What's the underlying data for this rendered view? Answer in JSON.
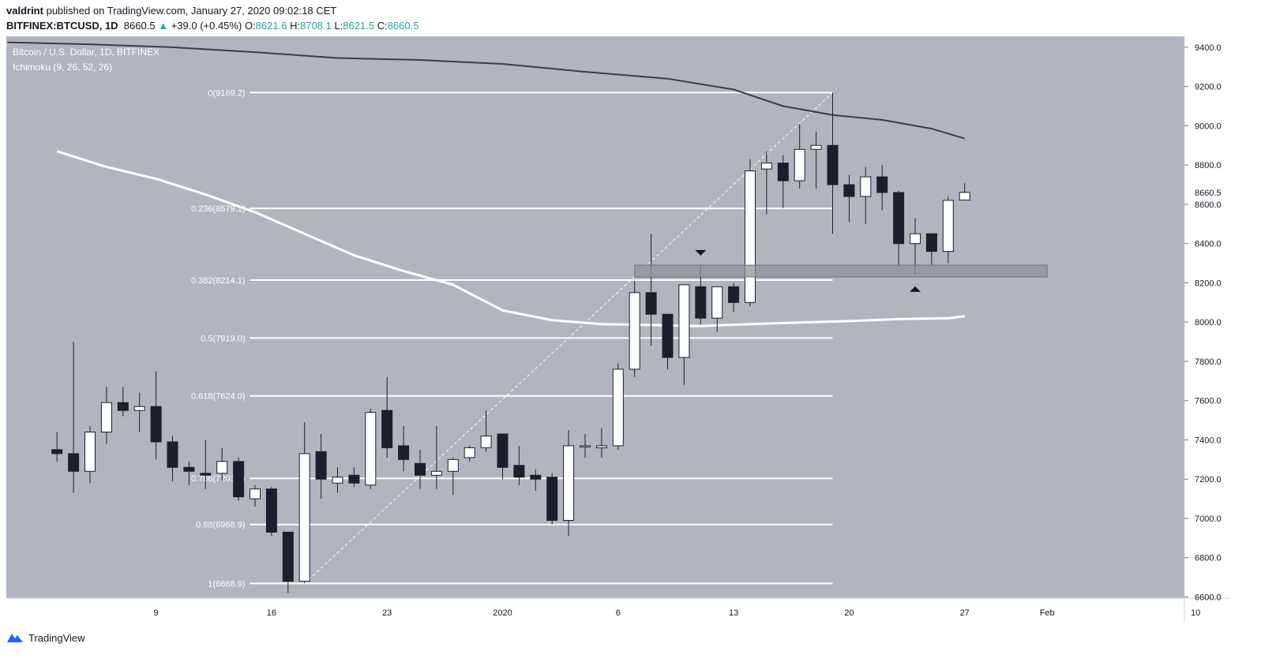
{
  "header": {
    "author": "valdrint",
    "published_text": "published on TradingView.com, January 27, 2020 09:02:18 CET",
    "symbol": "BITFINEX:BTCUSD, 1D",
    "last": "8660.5",
    "change_arrow": "▲",
    "change": "+39.0 (+0.45%)",
    "o_label": "O:",
    "o": "8621.6",
    "h_label": "H:",
    "h": "8708.1",
    "l_label": "L:",
    "l": "8621.5",
    "c_label": "C:",
    "c": "8660.5"
  },
  "legend": {
    "title": "Bitcoin / U.S. Dollar, 1D, BITFINEX",
    "indicator": "Ichimoku (9, 26, 52, 26)"
  },
  "footer": {
    "brand": "TradingView",
    "logo_icon": "tradingview-logo-icon"
  },
  "colors": {
    "pane_bg": "#b2b5be",
    "axis_bg": "#ffffff",
    "up_candle": "#ffffff",
    "down_candle": "#1c1f2b",
    "fib_line": "#ffffff",
    "dark_line": "#3a3d47",
    "light_line": "#ffffff",
    "zone": "#8f929b",
    "price_tag": "#ffffff"
  },
  "chart_data": {
    "type": "candlestick",
    "title": "Bitcoin / U.S. Dollar, 1D, BITFINEX",
    "ylim": [
      6600,
      9500
    ],
    "y_ticks": [
      6600,
      6800,
      7000,
      7200,
      7400,
      7600,
      7800,
      8000,
      8200,
      8400,
      8600,
      8800,
      9000,
      9200,
      9400
    ],
    "y_tick_labels": [
      "6600.0",
      "6800.0",
      "7000.0",
      "7200.0",
      "7400.0",
      "7600.0",
      "7800.0",
      "8000.0",
      "8200.0",
      "8400.0",
      "8600.0",
      "8800.0",
      "9000.0",
      "9200.0",
      "9400.0"
    ],
    "x_ticks": [
      {
        "day": 9,
        "label": "9"
      },
      {
        "day": 16,
        "label": "16"
      },
      {
        "day": 23,
        "label": "23"
      },
      {
        "day": 30,
        "label": "2020"
      },
      {
        "day": 37,
        "label": "6"
      },
      {
        "day": 44,
        "label": "13"
      },
      {
        "day": 51,
        "label": "20"
      },
      {
        "day": 58,
        "label": "27"
      },
      {
        "day": 63,
        "label": "Feb"
      },
      {
        "day": 72,
        "label": "10"
      }
    ],
    "last_price": 8660.5,
    "last_price_label": "8660.5",
    "candles": [
      {
        "d": 3,
        "o": 7350,
        "h": 7440,
        "l": 7290,
        "c": 7330
      },
      {
        "d": 4,
        "o": 7330,
        "h": 7900,
        "l": 7130,
        "c": 7240
      },
      {
        "d": 5,
        "o": 7240,
        "h": 7470,
        "l": 7180,
        "c": 7440
      },
      {
        "d": 6,
        "o": 7440,
        "h": 7670,
        "l": 7380,
        "c": 7590
      },
      {
        "d": 7,
        "o": 7590,
        "h": 7670,
        "l": 7520,
        "c": 7550
      },
      {
        "d": 8,
        "o": 7550,
        "h": 7640,
        "l": 7440,
        "c": 7570
      },
      {
        "d": 9,
        "o": 7570,
        "h": 7750,
        "l": 7300,
        "c": 7390
      },
      {
        "d": 10,
        "o": 7390,
        "h": 7420,
        "l": 7190,
        "c": 7260
      },
      {
        "d": 11,
        "o": 7260,
        "h": 7290,
        "l": 7170,
        "c": 7240
      },
      {
        "d": 12,
        "o": 7230,
        "h": 7400,
        "l": 7150,
        "c": 7220
      },
      {
        "d": 13,
        "o": 7230,
        "h": 7360,
        "l": 7190,
        "c": 7290
      },
      {
        "d": 14,
        "o": 7290,
        "h": 7310,
        "l": 7090,
        "c": 7110
      },
      {
        "d": 15,
        "o": 7100,
        "h": 7170,
        "l": 7060,
        "c": 7150
      },
      {
        "d": 16,
        "o": 7150,
        "h": 7160,
        "l": 6910,
        "c": 6930
      },
      {
        "d": 17,
        "o": 6930,
        "h": 6930,
        "l": 6620,
        "c": 6680
      },
      {
        "d": 18,
        "o": 6680,
        "h": 7490,
        "l": 6670,
        "c": 7330
      },
      {
        "d": 19,
        "o": 7340,
        "h": 7430,
        "l": 7100,
        "c": 7200
      },
      {
        "d": 20,
        "o": 7180,
        "h": 7260,
        "l": 7130,
        "c": 7210
      },
      {
        "d": 21,
        "o": 7220,
        "h": 7260,
        "l": 7160,
        "c": 7180
      },
      {
        "d": 22,
        "o": 7170,
        "h": 7560,
        "l": 7150,
        "c": 7540
      },
      {
        "d": 23,
        "o": 7550,
        "h": 7720,
        "l": 7310,
        "c": 7360
      },
      {
        "d": 24,
        "o": 7370,
        "h": 7470,
        "l": 7240,
        "c": 7300
      },
      {
        "d": 25,
        "o": 7280,
        "h": 7350,
        "l": 7150,
        "c": 7220
      },
      {
        "d": 26,
        "o": 7220,
        "h": 7470,
        "l": 7150,
        "c": 7240
      },
      {
        "d": 27,
        "o": 7240,
        "h": 7310,
        "l": 7120,
        "c": 7300
      },
      {
        "d": 28,
        "o": 7310,
        "h": 7370,
        "l": 7290,
        "c": 7360
      },
      {
        "d": 29,
        "o": 7360,
        "h": 7550,
        "l": 7340,
        "c": 7420
      },
      {
        "d": 30,
        "o": 7430,
        "h": 7430,
        "l": 7200,
        "c": 7260
      },
      {
        "d": 31,
        "o": 7270,
        "h": 7370,
        "l": 7170,
        "c": 7210
      },
      {
        "d": 32,
        "o": 7220,
        "h": 7250,
        "l": 7140,
        "c": 7200
      },
      {
        "d": 33,
        "o": 7210,
        "h": 7230,
        "l": 6970,
        "c": 6990
      },
      {
        "d": 34,
        "o": 6990,
        "h": 7450,
        "l": 6910,
        "c": 7370
      },
      {
        "d": 35,
        "o": 7370,
        "h": 7430,
        "l": 7310,
        "c": 7370
      },
      {
        "d": 36,
        "o": 7360,
        "h": 7460,
        "l": 7310,
        "c": 7370
      },
      {
        "d": 37,
        "o": 7370,
        "h": 7790,
        "l": 7350,
        "c": 7760
      },
      {
        "d": 38,
        "o": 7760,
        "h": 8210,
        "l": 7720,
        "c": 8150
      },
      {
        "d": 39,
        "o": 8150,
        "h": 8450,
        "l": 7880,
        "c": 8040
      },
      {
        "d": 40,
        "o": 8040,
        "h": 8040,
        "l": 7760,
        "c": 7820
      },
      {
        "d": 41,
        "o": 7820,
        "h": 8190,
        "l": 7680,
        "c": 8190
      },
      {
        "d": 42,
        "o": 8180,
        "h": 8290,
        "l": 7990,
        "c": 8020
      },
      {
        "d": 43,
        "o": 8020,
        "h": 8180,
        "l": 7950,
        "c": 8180
      },
      {
        "d": 44,
        "o": 8180,
        "h": 8200,
        "l": 8050,
        "c": 8100
      },
      {
        "d": 45,
        "o": 8100,
        "h": 8830,
        "l": 8080,
        "c": 8770
      },
      {
        "d": 46,
        "o": 8780,
        "h": 8870,
        "l": 8550,
        "c": 8810
      },
      {
        "d": 47,
        "o": 8810,
        "h": 8850,
        "l": 8580,
        "c": 8720
      },
      {
        "d": 48,
        "o": 8720,
        "h": 9010,
        "l": 8680,
        "c": 8880
      },
      {
        "d": 49,
        "o": 8880,
        "h": 8970,
        "l": 8680,
        "c": 8900
      },
      {
        "d": 50,
        "o": 8900,
        "h": 9169,
        "l": 8450,
        "c": 8700
      },
      {
        "d": 51,
        "o": 8700,
        "h": 8750,
        "l": 8510,
        "c": 8640
      },
      {
        "d": 52,
        "o": 8640,
        "h": 8790,
        "l": 8500,
        "c": 8740
      },
      {
        "d": 53,
        "o": 8740,
        "h": 8800,
        "l": 8570,
        "c": 8660
      },
      {
        "d": 54,
        "o": 8660,
        "h": 8670,
        "l": 8290,
        "c": 8400
      },
      {
        "d": 55,
        "o": 8400,
        "h": 8530,
        "l": 8240,
        "c": 8450
      },
      {
        "d": 56,
        "o": 8450,
        "h": 8450,
        "l": 8290,
        "c": 8360
      },
      {
        "d": 57,
        "o": 8360,
        "h": 8640,
        "l": 8300,
        "c": 8620
      },
      {
        "d": 58,
        "o": 8621.6,
        "h": 8708.1,
        "l": 8621.5,
        "c": 8660.5
      }
    ],
    "fibonacci": {
      "levels": [
        {
          "ratio": "0",
          "price": 9169.2,
          "label": "0(9169.2)"
        },
        {
          "ratio": "0.236",
          "price": 8579.1,
          "label": "0.236(8579.1)"
        },
        {
          "ratio": "0.382",
          "price": 8214.1,
          "label": "0.382(8214.1)"
        },
        {
          "ratio": "0.5",
          "price": 7919.0,
          "label": "0.5(7919.0)"
        },
        {
          "ratio": "0.618",
          "price": 7624.0,
          "label": "0.618(7624.0)"
        },
        {
          "ratio": "0.786",
          "price": 7203.9,
          "label": "0.786(7203.9)"
        },
        {
          "ratio": "0.88",
          "price": 6968.9,
          "label": "0.88(6968.9)"
        },
        {
          "ratio": "1",
          "price": 6668.9,
          "label": "1(6668.9)"
        }
      ],
      "from_day": 10,
      "to_day": 50,
      "trend_start": {
        "d": 18,
        "p": 6668.9
      },
      "trend_end": {
        "d": 50,
        "p": 9169.2
      }
    },
    "dark_line": [
      {
        "d": 0,
        "p": 9425
      },
      {
        "d": 5,
        "p": 9415
      },
      {
        "d": 10,
        "p": 9400
      },
      {
        "d": 15,
        "p": 9375
      },
      {
        "d": 20,
        "p": 9345
      },
      {
        "d": 25,
        "p": 9335
      },
      {
        "d": 30,
        "p": 9315
      },
      {
        "d": 35,
        "p": 9275
      },
      {
        "d": 40,
        "p": 9240
      },
      {
        "d": 44,
        "p": 9185
      },
      {
        "d": 47,
        "p": 9100
      },
      {
        "d": 50,
        "p": 9055
      },
      {
        "d": 53,
        "p": 9030
      },
      {
        "d": 56,
        "p": 8985
      },
      {
        "d": 58,
        "p": 8935
      }
    ],
    "light_line": [
      {
        "d": 3,
        "p": 8870
      },
      {
        "d": 6,
        "p": 8790
      },
      {
        "d": 9,
        "p": 8730
      },
      {
        "d": 12,
        "p": 8650
      },
      {
        "d": 15,
        "p": 8560
      },
      {
        "d": 18,
        "p": 8450
      },
      {
        "d": 21,
        "p": 8340
      },
      {
        "d": 24,
        "p": 8260
      },
      {
        "d": 27,
        "p": 8190
      },
      {
        "d": 30,
        "p": 8060
      },
      {
        "d": 33,
        "p": 8010
      },
      {
        "d": 36,
        "p": 7990
      },
      {
        "d": 39,
        "p": 7985
      },
      {
        "d": 42,
        "p": 7980
      },
      {
        "d": 45,
        "p": 7990
      },
      {
        "d": 48,
        "p": 7998
      },
      {
        "d": 51,
        "p": 8005
      },
      {
        "d": 54,
        "p": 8015
      },
      {
        "d": 57,
        "p": 8020
      },
      {
        "d": 58,
        "p": 8030
      }
    ],
    "support_zone": {
      "from_day": 38,
      "to_day": 63,
      "low": 8230,
      "high": 8290
    },
    "markers": [
      {
        "type": "down-arrow",
        "d": 42,
        "p": 8355
      },
      {
        "type": "up-arrow",
        "d": 55,
        "p": 8170
      }
    ]
  }
}
